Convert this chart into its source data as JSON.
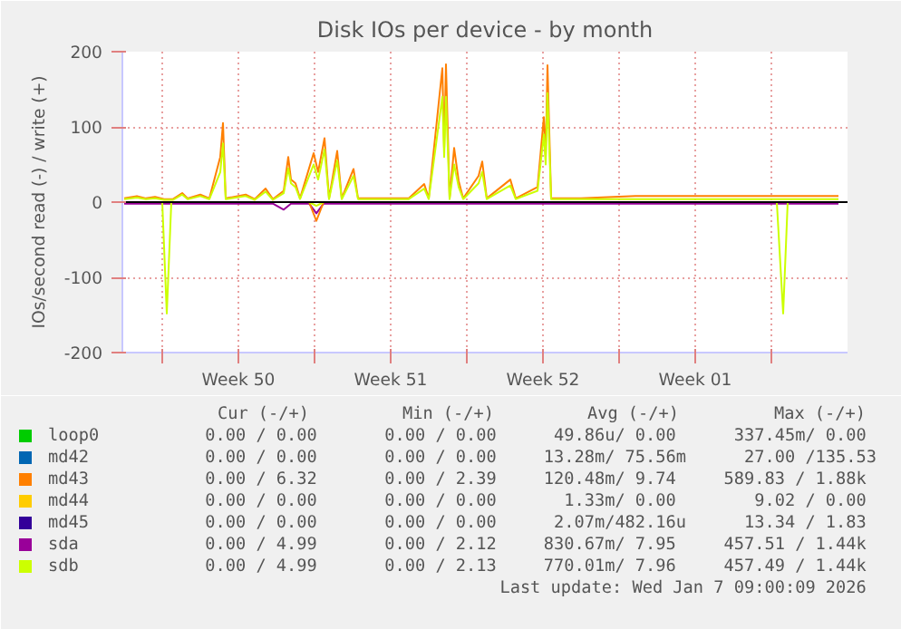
{
  "chart_data": {
    "type": "line",
    "title": "Disk IOs per device - by month",
    "ylabel": "IOs/second read (-) / write (+)",
    "xlim": [
      "2025-12-06T04:00",
      "2026-01-08T12:00"
    ],
    "xticks": [
      {
        "value": "2025-12-08T00:00",
        "label": null
      },
      {
        "value": "2025-12-11T12:00",
        "label": "Week 50"
      },
      {
        "value": "2025-12-15T00:00",
        "label": null
      },
      {
        "value": "2025-12-18T12:00",
        "label": "Week 51"
      },
      {
        "value": "2025-12-22T00:00",
        "label": null
      },
      {
        "value": "2025-12-25T12:00",
        "label": "Week 52"
      },
      {
        "value": "2025-12-29T00:00",
        "label": null
      },
      {
        "value": "2026-01-01T12:00",
        "label": "Week 01"
      },
      {
        "value": "2026-01-05T00:00",
        "label": null
      }
    ],
    "ylim": [
      -200,
      200
    ],
    "yticks": [
      -200,
      -100,
      0,
      100,
      200
    ],
    "grid": true,
    "legend": "bottom",
    "ref_lines": [
      {
        "axis": "y",
        "value": 0,
        "color": "#000000"
      }
    ],
    "x": [
      "2025-12-06T06:00",
      "2025-12-06T20:00",
      "2025-12-07T06:00",
      "2025-12-07T16:00",
      "2025-12-08T02:00",
      "2025-12-08T12:00",
      "2025-12-08T22:00",
      "2025-12-09T04:00",
      "2025-12-09T18:00",
      "2025-12-10T04:00",
      "2025-12-10T16:00",
      "2025-12-10T19:00",
      "2025-12-10T22:00",
      "2025-12-11T20:00",
      "2025-12-12T06:00",
      "2025-12-12T18:00",
      "2025-12-13T02:00",
      "2025-12-13T14:00",
      "2025-12-13T19:00",
      "2025-12-13T22:00",
      "2025-12-14T03:00",
      "2025-12-14T08:00",
      "2025-12-14T23:00",
      "2025-12-15T04:00",
      "2025-12-15T11:00",
      "2025-12-15T16:00",
      "2025-12-16T01:00",
      "2025-12-16T06:00",
      "2025-12-16T19:00",
      "2025-12-17T00:00",
      "2025-12-18T02:00",
      "2025-12-19T08:00",
      "2025-12-20T01:00",
      "2025-12-20T06:00",
      "2025-12-20T21:00",
      "2025-12-20T23:00",
      "2025-12-21T01:00",
      "2025-12-21T05:00",
      "2025-12-21T10:00",
      "2025-12-21T15:00",
      "2025-12-21T20:00",
      "2025-12-22T13:00",
      "2025-12-22T17:00",
      "2025-12-22T22:00",
      "2025-12-24T00:00",
      "2025-12-24T06:00",
      "2025-12-25T06:00",
      "2025-12-25T13:00",
      "2025-12-25T15:00",
      "2025-12-25T17:00",
      "2025-12-25T21:00",
      "2025-12-27T06:00",
      "2025-12-29T18:00",
      "2026-01-01T06:00",
      "2026-01-03T18:00",
      "2026-01-05T13:00",
      "2026-01-07T02:00",
      "2026-01-08T02:00"
    ],
    "series": [
      {
        "name": "loop0",
        "color": "#00cc00",
        "values": [
          null,
          null,
          null,
          null,
          null,
          null,
          null,
          null,
          null,
          null,
          null,
          null,
          null,
          null,
          null,
          null,
          null,
          null,
          null,
          null,
          null,
          null,
          null,
          null,
          null,
          null,
          null,
          null,
          null,
          null,
          null,
          null,
          null,
          null,
          null,
          null,
          null,
          null,
          null,
          null,
          null,
          null,
          null,
          null,
          null,
          null,
          null,
          null,
          null,
          null,
          null,
          null,
          null,
          null,
          null,
          null,
          null,
          null
        ]
      },
      {
        "name": "md42",
        "color": "#0066b3",
        "values": [
          null,
          null,
          null,
          null,
          null,
          null,
          null,
          null,
          null,
          null,
          null,
          null,
          null,
          null,
          null,
          null,
          null,
          null,
          null,
          null,
          null,
          null,
          null,
          null,
          null,
          null,
          null,
          null,
          null,
          null,
          null,
          null,
          null,
          null,
          null,
          null,
          null,
          null,
          null,
          null,
          null,
          null,
          null,
          null,
          null,
          null,
          null,
          null,
          null,
          null,
          null,
          null,
          null,
          null,
          null,
          null,
          null,
          null
        ]
      },
      {
        "name": "md43",
        "color": "#ff8000",
        "values": [
          5,
          8,
          5,
          7,
          4,
          4,
          12,
          5,
          10,
          5,
          60,
          105,
          5,
          10,
          4,
          18,
          4,
          15,
          60,
          30,
          25,
          5,
          65,
          40,
          85,
          5,
          68,
          5,
          44,
          5,
          5,
          5,
          24,
          5,
          178,
          70,
          183,
          5,
          72,
          28,
          5,
          35,
          54,
          5,
          30,
          5,
          20,
          113,
          60,
          182,
          5,
          5,
          8,
          8,
          8,
          8,
          8,
          8
        ]
      },
      {
        "name": "md44",
        "color": "#ffcc00",
        "values": [
          null,
          null,
          null,
          null,
          null,
          null,
          null,
          null,
          null,
          null,
          null,
          null,
          null,
          null,
          null,
          null,
          null,
          null,
          null,
          null,
          null,
          null,
          null,
          null,
          null,
          null,
          null,
          null,
          null,
          null,
          null,
          null,
          null,
          null,
          null,
          null,
          null,
          null,
          null,
          null,
          null,
          null,
          null,
          null,
          null,
          null,
          null,
          null,
          null,
          null,
          null,
          null,
          null,
          null,
          null,
          null,
          null,
          null
        ]
      },
      {
        "name": "md45",
        "color": "#330099",
        "values": [
          null,
          null,
          null,
          null,
          null,
          null,
          null,
          null,
          null,
          null,
          null,
          null,
          null,
          null,
          null,
          null,
          null,
          null,
          null,
          null,
          null,
          null,
          null,
          null,
          null,
          null,
          null,
          null,
          null,
          null,
          null,
          null,
          null,
          null,
          null,
          null,
          null,
          null,
          null,
          null,
          null,
          null,
          null,
          null,
          null,
          null,
          null,
          null,
          null,
          null,
          null,
          null,
          null,
          null,
          null,
          null,
          null,
          null
        ]
      },
      {
        "name": "sda",
        "color": "#990099",
        "x": [
          "2025-12-06T06:00",
          "2025-12-13T02:00",
          "2025-12-13T14:00",
          "2025-12-13T22:00",
          "2025-12-14T18:00",
          "2025-12-15T02:00",
          "2025-12-15T10:00",
          "2026-01-08T02:00"
        ],
        "values": [
          -2,
          -2,
          -10,
          -2,
          -2,
          -15,
          -2,
          -2
        ]
      },
      {
        "name": "sdb",
        "color": "#ccff00",
        "values": [
          4,
          6,
          4,
          5,
          3,
          3,
          10,
          4,
          8,
          4,
          40,
          78,
          4,
          8,
          3,
          14,
          3,
          12,
          45,
          25,
          20,
          4,
          50,
          30,
          70,
          4,
          55,
          4,
          35,
          4,
          4,
          4,
          18,
          4,
          140,
          60,
          140,
          4,
          50,
          20,
          4,
          25,
          40,
          4,
          22,
          4,
          15,
          90,
          50,
          145,
          4,
          4,
          4,
          4,
          4,
          4,
          4,
          4
        ]
      },
      {
        "color": "#ff8000",
        "x": [
          "2025-12-14T18:00",
          "2025-12-15T02:00",
          "2025-12-15T10:00"
        ],
        "values": [
          0,
          -25,
          0
        ]
      },
      {
        "color": "#ccff00",
        "x": [
          "2025-12-06T06:00",
          "2025-12-08T00:00",
          "2025-12-08T05:00",
          "2025-12-08T10:00",
          "2025-12-14T18:00",
          "2025-12-15T02:00",
          "2025-12-15T10:00",
          "2026-01-05T06:00",
          "2026-01-05T13:00",
          "2026-01-05T18:00",
          "2026-01-08T02:00"
        ],
        "values": [
          0,
          0,
          -148,
          0,
          0,
          -5,
          0,
          0,
          -148,
          0,
          0
        ]
      }
    ],
    "annotations": [
      "Cur (-/+)",
      "Min (-/+)",
      "Avg (-/+)",
      "Max (-/+)",
      "0.00 /  0.00",
      "0.00 /  0.00",
      "49.86u/  0.00",
      "337.45m/  0.00",
      "0.00 /  0.00",
      "0.00 /  0.00",
      "13.28m/ 75.56m",
      "27.00 /135.53",
      "0.00 /  6.32",
      "0.00 /  2.39",
      "120.48m/  9.74",
      "589.83 /  1.88k",
      "0.00 /  0.00",
      "0.00 /  0.00",
      "1.33m/  0.00",
      "9.02 /  0.00",
      "0.00 /  0.00",
      "0.00 /  0.00",
      "2.07m/482.16u",
      "13.34 /  1.83",
      "0.00 /  4.99",
      "0.00 /  2.12",
      "830.67m/  7.95",
      "457.51 /  1.44k",
      "0.00 /  4.99",
      "0.00 /  2.13",
      "770.01m/  7.96",
      "457.49 /  1.44k",
      "Last update: Wed Jan  7 09:00:09 2026"
    ]
  }
}
